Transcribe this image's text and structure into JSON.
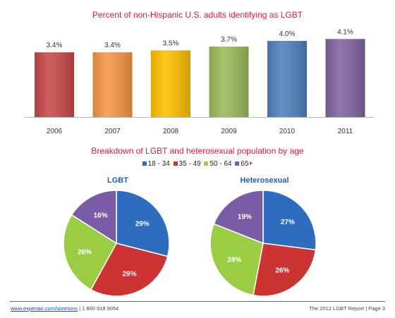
{
  "chart_data": [
    {
      "type": "bar",
      "title": "Percent of non-Hispanic U.S. adults identifying as LGBT",
      "categories": [
        "2006",
        "2007",
        "2008",
        "2009",
        "2010",
        "2011"
      ],
      "values": [
        3.4,
        3.4,
        3.5,
        3.7,
        4.0,
        4.1
      ],
      "data_labels": [
        "3.4%",
        "3.4%",
        "3.5%",
        "3.7%",
        "4.0%",
        "4.1%"
      ],
      "colors": [
        "#c94848",
        "#f79646",
        "#ffc000",
        "#9bbb59",
        "#4f81bd",
        "#8064a2"
      ]
    },
    {
      "type": "pie",
      "title": "Breakdown of LGBT and heterosexual population by age",
      "legend": [
        {
          "label": "18 - 34",
          "color": "#2e6cc0"
        },
        {
          "label": "35 - 49",
          "color": "#cc3333"
        },
        {
          "label": "50 - 64",
          "color": "#9acd44"
        },
        {
          "label": "65+",
          "color": "#7b5aa6"
        }
      ],
      "pies": [
        {
          "name": "LGBT",
          "values": [
            29,
            29,
            26,
            16
          ],
          "labels": [
            "29%",
            "29%",
            "26%",
            "16%"
          ]
        },
        {
          "name": "Heterosexual",
          "values": [
            27,
            26,
            28,
            19
          ],
          "labels": [
            "27%",
            "26%",
            "28%",
            "19%"
          ]
        }
      ]
    }
  ],
  "footer": {
    "link": "www.experian.com/simmons",
    "phone": " | 1 800 918 9054",
    "right": "The 2012 LGBT Report | Page 3"
  }
}
